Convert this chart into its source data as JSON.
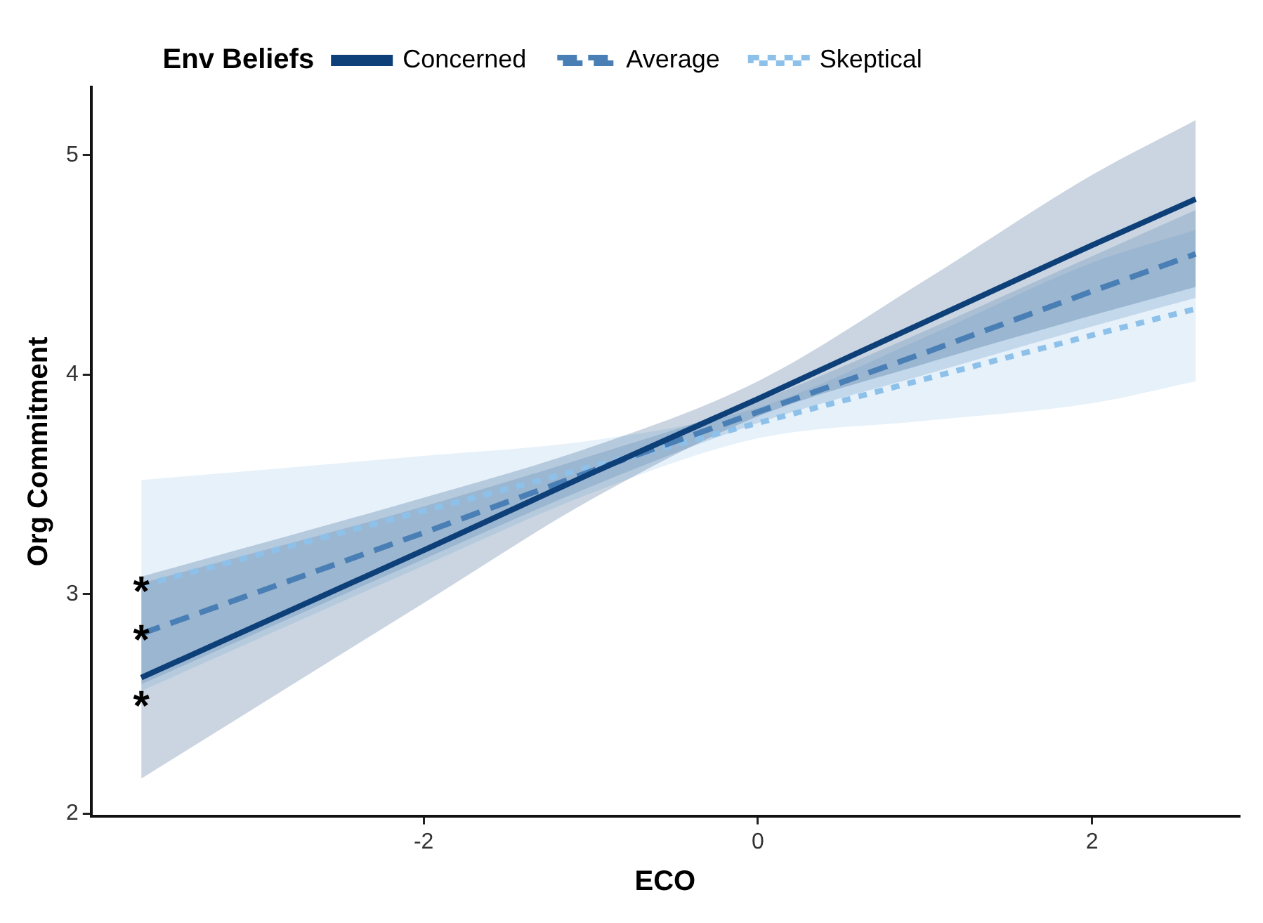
{
  "chart_data": {
    "type": "line",
    "xlabel": "ECO",
    "ylabel": "Org Commitment",
    "legend_title": "Env Beliefs",
    "legend": "top",
    "grid": false,
    "marker": "none",
    "x": [
      -3.69,
      -2,
      -1,
      0,
      1,
      2,
      2.62
    ],
    "xlim": [
      -3.99,
      2.88
    ],
    "xticks": [
      -2,
      0,
      2
    ],
    "ylim": [
      1.99,
      5.31
    ],
    "yticks": [
      2,
      3,
      4,
      5
    ],
    "series": [
      {
        "name": "Concerned",
        "color": "#0d3f78",
        "line_style": "solid",
        "values": [
          2.62,
          3.2,
          3.55,
          3.89,
          4.24,
          4.59,
          4.8
        ],
        "lower": [
          2.16,
          2.96,
          3.43,
          3.81,
          4.05,
          4.27,
          4.4
        ],
        "upper": [
          3.08,
          3.44,
          3.67,
          3.97,
          4.43,
          4.91,
          5.16
        ]
      },
      {
        "name": "Average",
        "color": "#4a7fb5",
        "line_style": "dashed",
        "values": [
          2.82,
          3.28,
          3.56,
          3.83,
          4.1,
          4.38,
          4.55
        ],
        "lower": [
          2.59,
          3.16,
          3.49,
          3.78,
          4.0,
          4.22,
          4.35
        ],
        "upper": [
          3.05,
          3.4,
          3.63,
          3.88,
          4.2,
          4.54,
          4.75
        ]
      },
      {
        "name": "Skeptical",
        "color": "#8ec1ea",
        "line_style": "dotted",
        "values": [
          3.04,
          3.38,
          3.58,
          3.78,
          3.98,
          4.18,
          4.3
        ],
        "lower": [
          2.56,
          3.13,
          3.46,
          3.71,
          3.79,
          3.87,
          3.97
        ],
        "upper": [
          3.52,
          3.63,
          3.7,
          3.85,
          4.17,
          4.51,
          4.66
        ]
      }
    ],
    "annotations": [
      "*",
      "*",
      "*"
    ]
  }
}
